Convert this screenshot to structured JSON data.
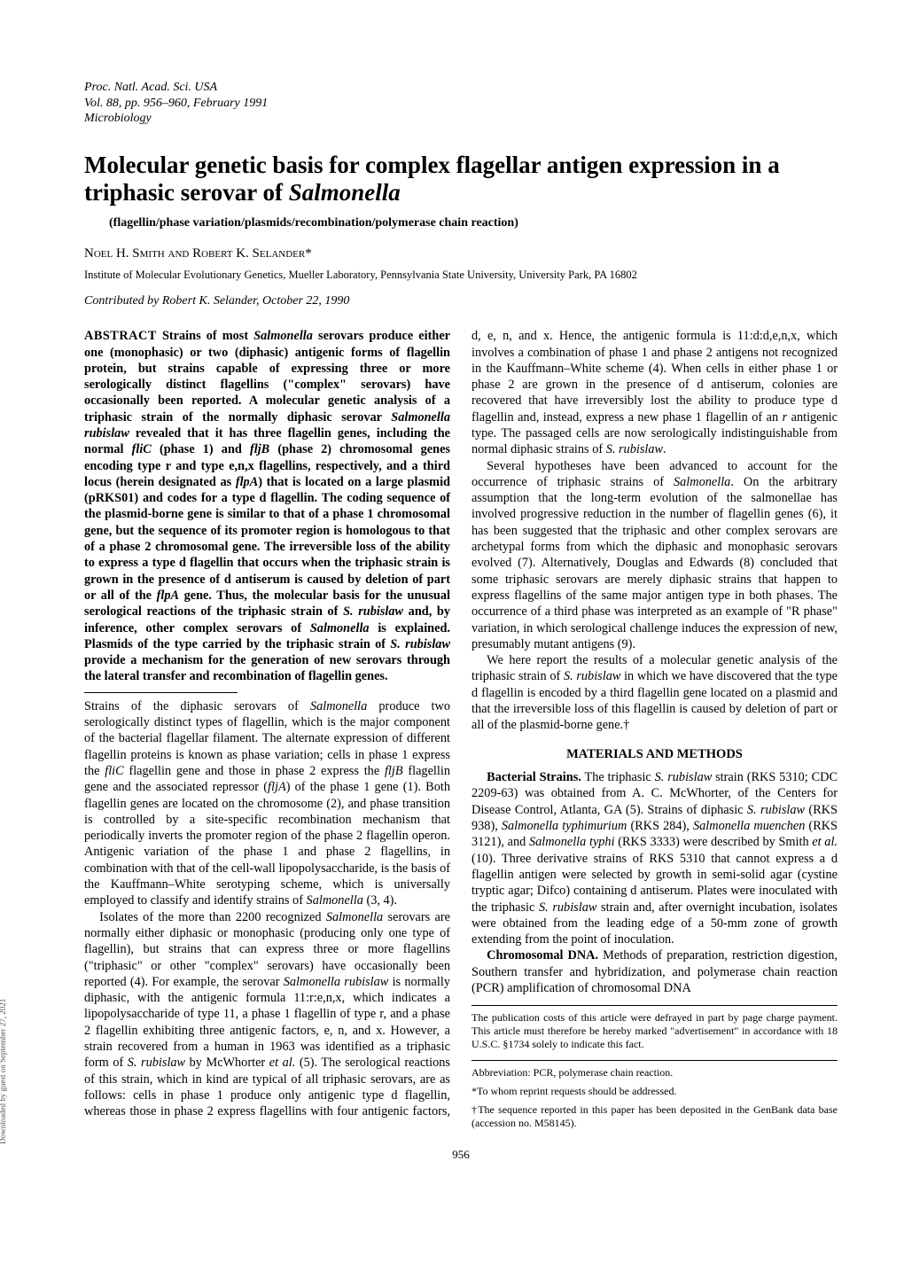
{
  "header": {
    "line1": "Proc. Natl. Acad. Sci. USA",
    "line2": "Vol. 88, pp. 956–960, February 1991",
    "line3": "Microbiology"
  },
  "title_part1": "Molecular genetic basis for complex flagellar antigen expression in a triphasic serovar of ",
  "title_ital": "Salmonella",
  "keywords": "(flagellin/phase variation/plasmids/recombination/polymerase chain reaction)",
  "authors": "Noel H. Smith and Robert K. Selander*",
  "affiliation": "Institute of Molecular Evolutionary Genetics, Mueller Laboratory, Pennsylvania State University, University Park, PA 16802",
  "contributed": "Contributed by Robert K. Selander, October 22, 1990",
  "abstract_label": "ABSTRACT",
  "abstract_body_frags": [
    {
      "t": "    Strains of most ",
      "i": false
    },
    {
      "t": "Salmonella",
      "i": true
    },
    {
      "t": " serovars produce either one (monophasic) or two (diphasic) antigenic forms of flagellin protein, but strains capable of expressing three or more serologically distinct flagellins (\"complex\" serovars) have occasionally been reported. A molecular genetic analysis of a triphasic strain of the normally diphasic serovar ",
      "i": false
    },
    {
      "t": "Salmonella rubislaw",
      "i": true
    },
    {
      "t": " revealed that it has three flagellin genes, including the normal ",
      "i": false
    },
    {
      "t": "fliC",
      "i": true
    },
    {
      "t": " (phase 1) and ",
      "i": false
    },
    {
      "t": "fljB",
      "i": true
    },
    {
      "t": " (phase 2) chromosomal genes encoding type r and type e,n,x flagellins, respectively, and a third locus (herein designated as ",
      "i": false
    },
    {
      "t": "flpA",
      "i": true
    },
    {
      "t": ") that is located on a large plasmid (pRKS01) and codes for a type d flagellin. The coding sequence of the plasmid-borne gene is similar to that of a phase 1 chromosomal gene, but the sequence of its promoter region is homologous to that of a phase 2 chromosomal gene. The irreversible loss of the ability to express a type d flagellin that occurs when the triphasic strain is grown in the presence of d antiserum is caused by deletion of part or all of the ",
      "i": false
    },
    {
      "t": "flpA",
      "i": true
    },
    {
      "t": " gene. Thus, the molecular basis for the unusual serological reactions of the triphasic strain of ",
      "i": false
    },
    {
      "t": "S. rubislaw",
      "i": true
    },
    {
      "t": " and, by inference, other complex serovars of ",
      "i": false
    },
    {
      "t": "Salmonella",
      "i": true
    },
    {
      "t": " is explained. Plasmids of the type carried by the triphasic strain of ",
      "i": false
    },
    {
      "t": "S. rubislaw",
      "i": true
    },
    {
      "t": " provide a mechanism for the generation of new serovars through the lateral transfer and recombination of flagellin genes.",
      "i": false
    }
  ],
  "intro_p1_frags": [
    {
      "t": "Strains of the diphasic serovars of ",
      "i": false
    },
    {
      "t": "Salmonella",
      "i": true
    },
    {
      "t": " produce two serologically distinct types of flagellin, which is the major component of the bacterial flagellar filament. The alternate expression of different flagellin proteins is known as phase variation; cells in phase 1 express the ",
      "i": false
    },
    {
      "t": "fliC",
      "i": true
    },
    {
      "t": " flagellin gene and those in phase 2 express the ",
      "i": false
    },
    {
      "t": "fljB",
      "i": true
    },
    {
      "t": " flagellin gene and the associated repressor (",
      "i": false
    },
    {
      "t": "fljA",
      "i": true
    },
    {
      "t": ") of the phase 1 gene (1). Both flagellin genes are located on the chromosome (2), and phase transition is controlled by a site-specific recombination mechanism that periodically inverts the promoter region of the phase 2 flagellin operon. Antigenic variation of the phase 1 and phase 2 flagellins, in combination with that of the cell-wall lipopolysaccharide, is the basis of the Kauffmann–White serotyping scheme, which is universally employed to classify and identify strains of ",
      "i": false
    },
    {
      "t": "Salmonella",
      "i": true
    },
    {
      "t": " (3, 4).",
      "i": false
    }
  ],
  "intro_p2_frags": [
    {
      "t": "Isolates of the more than 2200 recognized ",
      "i": false
    },
    {
      "t": "Salmonella",
      "i": true
    },
    {
      "t": " serovars are normally either diphasic or monophasic (producing only one type of flagellin), but strains that can express three or more flagellins (\"triphasic\" or other \"complex\" serovars) have occasionally been reported (4). For example, the serovar ",
      "i": false
    },
    {
      "t": "Salmonella rubislaw",
      "i": true
    },
    {
      "t": " is normally diphasic, with the antigenic formula 11:r:e,n,x, which indicates a lipopolysaccharide of type 11, a phase 1 flagellin of type r, and a phase 2 flagellin exhibiting three antigenic factors, e, n, and x. However, a strain recovered from a human in 1963 was identified as a triphasic form of ",
      "i": false
    },
    {
      "t": "S. rubislaw",
      "i": true
    },
    {
      "t": " by McWhorter ",
      "i": false
    },
    {
      "t": "et al.",
      "i": true
    },
    {
      "t": " (5). The serological reactions of this strain, which in kind are typical of all triphasic serovars, are as follows: cells in phase 1 produce only antigenic type d flagellin, whereas those in phase 2 express flagellins with four antigenic factors, d, e, n, and x. Hence, the antigenic formula is 11:d:d,e,n,x, which involves a combination of phase 1 and phase 2 antigens not recognized in the Kauffmann–White scheme (4). When cells in either phase 1 or phase 2 are grown in the presence of d antiserum, colonies are recovered that have irreversibly lost the ability to produce type d flagellin and, instead, express a new phase 1 flagellin of an ",
      "i": false
    },
    {
      "t": "r",
      "i": true
    },
    {
      "t": " antigenic type. The passaged cells are now serologically indistinguishable from normal diphasic strains of ",
      "i": false
    },
    {
      "t": "S. rubislaw",
      "i": true
    },
    {
      "t": ".",
      "i": false
    }
  ],
  "intro_p3_frags": [
    {
      "t": "Several hypotheses have been advanced to account for the occurrence of triphasic strains of ",
      "i": false
    },
    {
      "t": "Salmonella",
      "i": true
    },
    {
      "t": ". On the arbitrary assumption that the long-term evolution of the salmonellae has involved progressive reduction in the number of flagellin genes (6), it has been suggested that the triphasic and other complex serovars are archetypal forms from which the diphasic and monophasic serovars evolved (7). Alternatively, Douglas and Edwards (8) concluded that some triphasic serovars are merely diphasic strains that happen to express flagellins of the same major antigen type in both phases. The occurrence of a third phase was interpreted as an example of \"R phase\" variation, in which serological challenge induces the expression of new, presumably mutant antigens (9).",
      "i": false
    }
  ],
  "intro_p4_frags": [
    {
      "t": "We here report the results of a molecular genetic analysis of the triphasic strain of ",
      "i": false
    },
    {
      "t": "S. rubislaw",
      "i": true
    },
    {
      "t": " in which we have discovered that the type d flagellin is encoded by a third flagellin gene located on a plasmid and that the irreversible loss of this flagellin is caused by deletion of part or all of the plasmid-borne gene.†",
      "i": false
    }
  ],
  "methods_heading": "MATERIALS AND METHODS",
  "methods_p1_runin": "Bacterial Strains.",
  "methods_p1_frags": [
    {
      "t": " The triphasic ",
      "i": false
    },
    {
      "t": "S. rubislaw",
      "i": true
    },
    {
      "t": " strain (RKS 5310; CDC 2209-63) was obtained from A. C. McWhorter, of the Centers for Disease Control, Atlanta, GA (5). Strains of diphasic ",
      "i": false
    },
    {
      "t": "S. rubislaw",
      "i": true
    },
    {
      "t": " (RKS 938), ",
      "i": false
    },
    {
      "t": "Salmonella typhimurium",
      "i": true
    },
    {
      "t": " (RKS 284), ",
      "i": false
    },
    {
      "t": "Salmonella muenchen",
      "i": true
    },
    {
      "t": " (RKS 3121), and ",
      "i": false
    },
    {
      "t": "Salmonella typhi",
      "i": true
    },
    {
      "t": " (RKS 3333) were described by Smith ",
      "i": false
    },
    {
      "t": "et al.",
      "i": true
    },
    {
      "t": " (10). Three derivative strains of RKS 5310 that cannot express a d flagellin antigen were selected by growth in semi-solid agar (cystine tryptic agar; Difco) containing d antiserum. Plates were inoculated with the triphasic ",
      "i": false
    },
    {
      "t": "S. rubislaw",
      "i": true
    },
    {
      "t": " strain and, after overnight incubation, isolates were obtained from the leading edge of a 50-mm zone of growth extending from the point of inoculation.",
      "i": false
    }
  ],
  "methods_p2_runin": "Chromosomal DNA.",
  "methods_p2_text": " Methods of preparation, restriction digestion, Southern transfer and hybridization, and polymerase chain reaction (PCR) amplification of chromosomal DNA",
  "pubcost": "The publication costs of this article were defrayed in part by page charge payment. This article must therefore be hereby marked \"advertisement\" in accordance with 18 U.S.C. §1734 solely to indicate this fact.",
  "abbrev": "Abbreviation: PCR, polymerase chain reaction.",
  "fn_star": "*To whom reprint requests should be addressed.",
  "fn_dagger": "†The sequence reported in this paper has been deposited in the GenBank data base (accession no. M58145).",
  "page_number": "956",
  "side_note": "Downloaded by guest on September 27, 2021"
}
